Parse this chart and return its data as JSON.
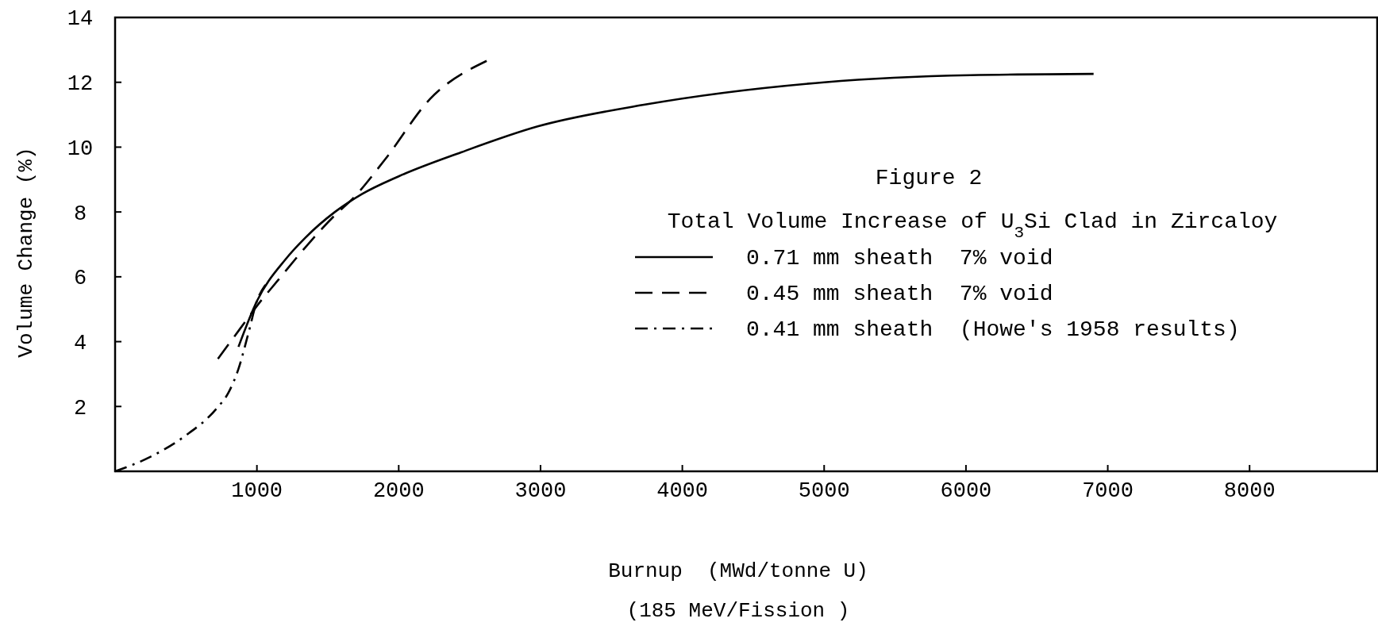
{
  "chart_data": {
    "type": "line",
    "title": "Figure 2",
    "subtitle": "Total Volume Increase of U$_{3}$Si Clad in Zircaloy",
    "xlabel": "Burnup  (MWd/tonne U)",
    "ylabel": "Volume Change (%)",
    "annotations": [
      "(185 MeV/Fission )"
    ],
    "xlim": [
      0,
      8900
    ],
    "ylim": [
      0,
      14
    ],
    "xticks": [
      1000,
      2000,
      3000,
      4000,
      5000,
      6000,
      7000,
      8000
    ],
    "yticks": [
      2,
      4,
      6,
      8,
      10,
      12,
      14
    ],
    "grid": false,
    "legend": "right",
    "marker": "none",
    "series": [
      {
        "name": "0.71 mm sheath  7% void",
        "color": "#000000",
        "line_style": "solid",
        "x": [
          870,
          1000,
          1200,
          1340,
          1550,
          1740,
          2000,
          2440,
          2980,
          3720,
          5000,
          6030,
          6900
        ],
        "values": [
          3.84,
          5.25,
          6.53,
          7.2,
          8.0,
          8.55,
          9.1,
          9.84,
          10.64,
          11.3,
          12.0,
          12.22,
          12.26
        ]
      },
      {
        "name": "0.45 mm sheath  7% void",
        "color": "#000000",
        "line_style": "dashed",
        "x": [
          725,
          880,
          1000,
          1150,
          1340,
          1550,
          1680,
          1900,
          2220,
          2620
        ],
        "values": [
          3.47,
          4.39,
          5.1,
          5.9,
          6.9,
          7.9,
          8.43,
          9.6,
          11.48,
          12.66
        ]
      },
      {
        "name": "0.41 mm sheath  (Howe's 1958 results)",
        "color": "#000000",
        "line_style": "dashdot",
        "x": [
          0,
          260,
          490,
          716,
          800,
          870,
          940,
          1000,
          1060
        ],
        "values": [
          0,
          0.47,
          1.08,
          1.94,
          2.43,
          3.16,
          4.26,
          5.25,
          5.75
        ]
      }
    ]
  }
}
